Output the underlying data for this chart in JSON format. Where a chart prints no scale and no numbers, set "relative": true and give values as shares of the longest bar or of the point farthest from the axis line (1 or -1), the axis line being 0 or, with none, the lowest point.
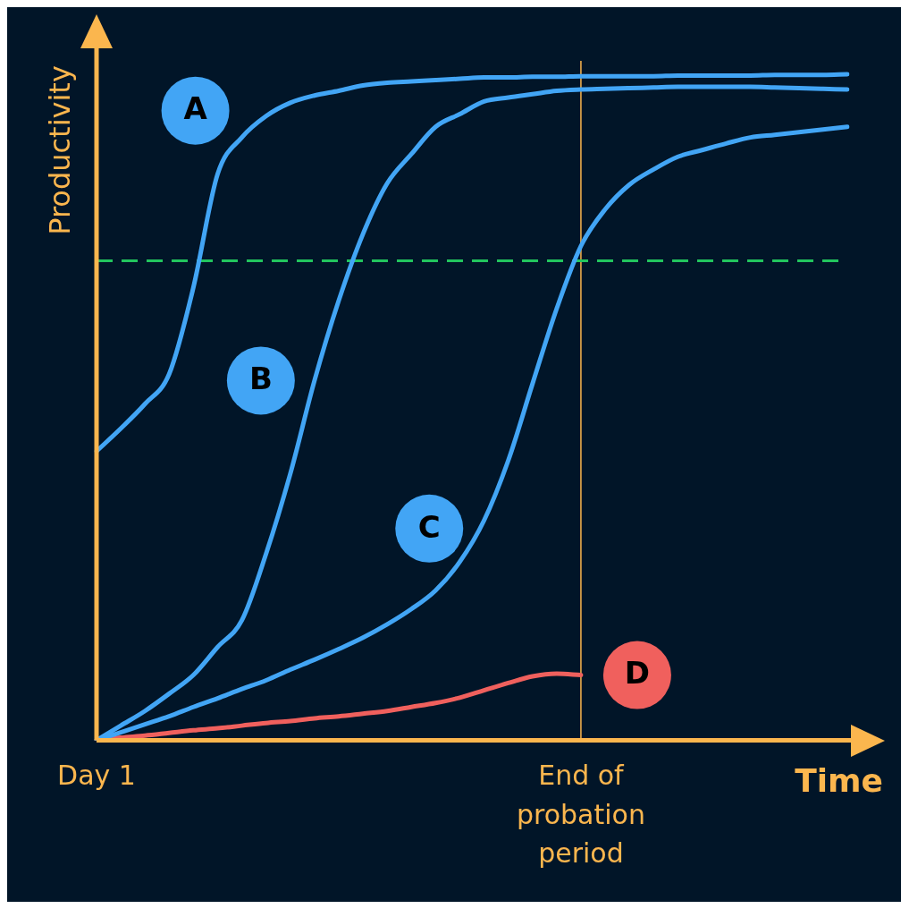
{
  "chart_data": {
    "type": "line",
    "xlabel": "Time",
    "ylabel": "Productivity",
    "relative": true,
    "legend": false,
    "marker": "none",
    "tick_labels": "x",
    "categories": [
      "Day 1",
      null,
      null,
      null,
      null,
      null,
      null,
      null,
      null,
      null,
      null,
      null,
      null,
      null,
      null,
      null,
      null,
      null,
      null,
      null,
      "End of probation period",
      null,
      null,
      null,
      null,
      null,
      null,
      null,
      null,
      null,
      null,
      null
    ],
    "ref_lines": [
      {
        "axis": "x",
        "value": "End of probation period",
        "color": "#fbb64e",
        "line_style": "solid"
      },
      {
        "axis": "y",
        "value": 0.72,
        "color": "#22c55e",
        "line_style": "dashed"
      }
    ],
    "series": [
      {
        "name": "A",
        "color": "#42a5f5",
        "values": [
          0.434,
          0.468,
          0.505,
          0.55,
          0.68,
          0.85,
          0.905,
          0.937,
          0.957,
          0.968,
          0.975,
          0.983,
          0.987,
          0.989,
          0.991,
          0.993,
          0.995,
          0.995,
          0.996,
          0.996,
          0.997,
          0.997,
          0.997,
          0.997,
          0.998,
          0.998,
          0.998,
          0.998,
          0.999,
          0.999,
          0.999,
          1.0
        ]
      },
      {
        "name": "B",
        "color": "#42a5f5",
        "values": [
          0,
          0.022,
          0.044,
          0.07,
          0.098,
          0.14,
          0.18,
          0.28,
          0.4,
          0.54,
          0.66,
          0.76,
          0.836,
          0.88,
          0.921,
          0.94,
          0.959,
          0.965,
          0.97,
          0.975,
          0.977,
          0.978,
          0.979,
          0.98,
          0.981,
          0.981,
          0.981,
          0.981,
          0.98,
          0.979,
          0.978,
          0.977
        ]
      },
      {
        "name": "C",
        "color": "#42a5f5",
        "values": [
          0,
          0.012,
          0.024,
          0.036,
          0.05,
          0.063,
          0.077,
          0.09,
          0.106,
          0.121,
          0.137,
          0.154,
          0.174,
          0.197,
          0.225,
          0.268,
          0.33,
          0.42,
          0.535,
          0.648,
          0.742,
          0.797,
          0.834,
          0.857,
          0.876,
          0.886,
          0.896,
          0.905,
          0.909,
          0.913,
          0.917,
          0.921
        ]
      },
      {
        "name": "D",
        "color": "#f0605d",
        "values": [
          0,
          0.004,
          0.007,
          0.011,
          0.015,
          0.018,
          0.022,
          0.026,
          0.029,
          0.033,
          0.036,
          0.04,
          0.044,
          0.05,
          0.056,
          0.064,
          0.075,
          0.086,
          0.096,
          0.1,
          0.098,
          null,
          null,
          null,
          null,
          null,
          null,
          null,
          null,
          null,
          null,
          null
        ]
      }
    ]
  }
}
